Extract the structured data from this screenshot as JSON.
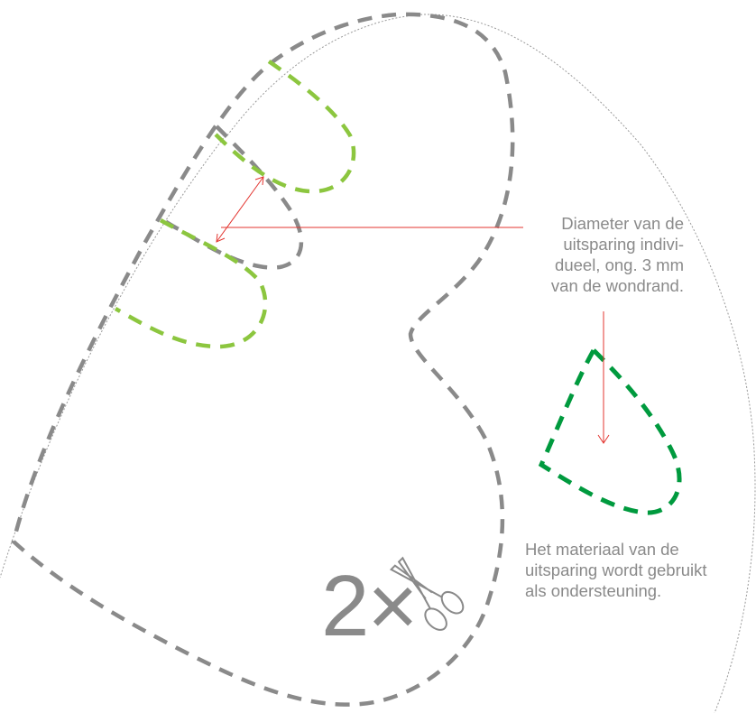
{
  "notes": {
    "diameter": [
      "Diameter van de",
      "uitsparing indivi-",
      "dueel, ong. 3 mm",
      "van de wondrand."
    ],
    "material": [
      "Het materiaal van de",
      "uitsparing wordt gebruikt",
      "als ondersteuning."
    ]
  },
  "count_label": "2×",
  "icons": {
    "scissors": "scissors-icon"
  },
  "colors": {
    "outline": "#8a8a8a",
    "cutout_light": "#8cc63f",
    "cutout_dark": "#009a3e",
    "arrow": "#e3342f",
    "thin_outline": "#8a8a8a"
  }
}
